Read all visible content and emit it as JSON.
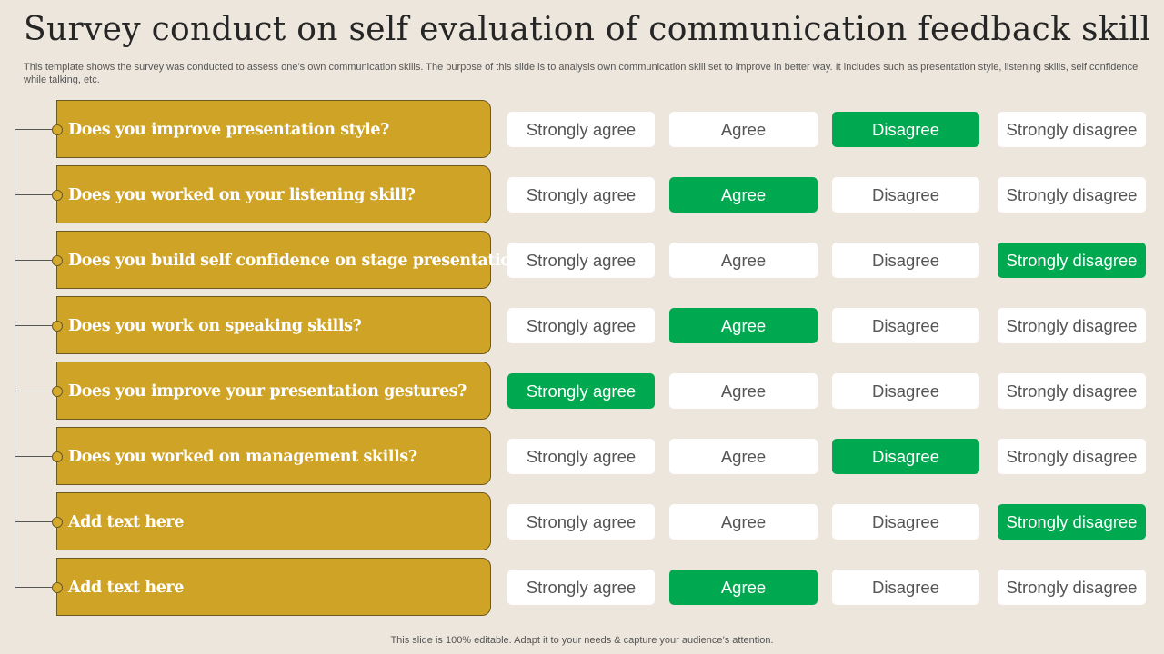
{
  "title": "Survey conduct on self evaluation of communication feedback skill",
  "subtitle": "This template shows the survey was conducted to assess one’s own communication skills. The purpose of this slide is to analysis own communication skill set to improve in better way.  It includes such as presentation style, listening skills, self confidence while talking, etc.",
  "options": [
    "Strongly agree",
    "Agree",
    "Disagree",
    "Strongly disagree"
  ],
  "questions": [
    {
      "text": "Does you improve presentation style?",
      "selected": 2
    },
    {
      "text": "Does you worked on your listening skill?",
      "selected": 1
    },
    {
      "text": "Does you build self confidence on stage presentation?",
      "selected": 3
    },
    {
      "text": "Does you work on speaking skills?",
      "selected": 1
    },
    {
      "text": "Does you improve your presentation gestures?",
      "selected": 0
    },
    {
      "text": "Does you worked on management skills?",
      "selected": 2
    },
    {
      "text": "Add text here",
      "selected": 3
    },
    {
      "text": "Add text here",
      "selected": 1
    }
  ],
  "colors": {
    "question_fill": "#cfa426",
    "selected": "#00a84f",
    "unselected": "#ffffff"
  },
  "footer": "This slide is 100% editable. Adapt it to your needs & capture your audience’s attention."
}
